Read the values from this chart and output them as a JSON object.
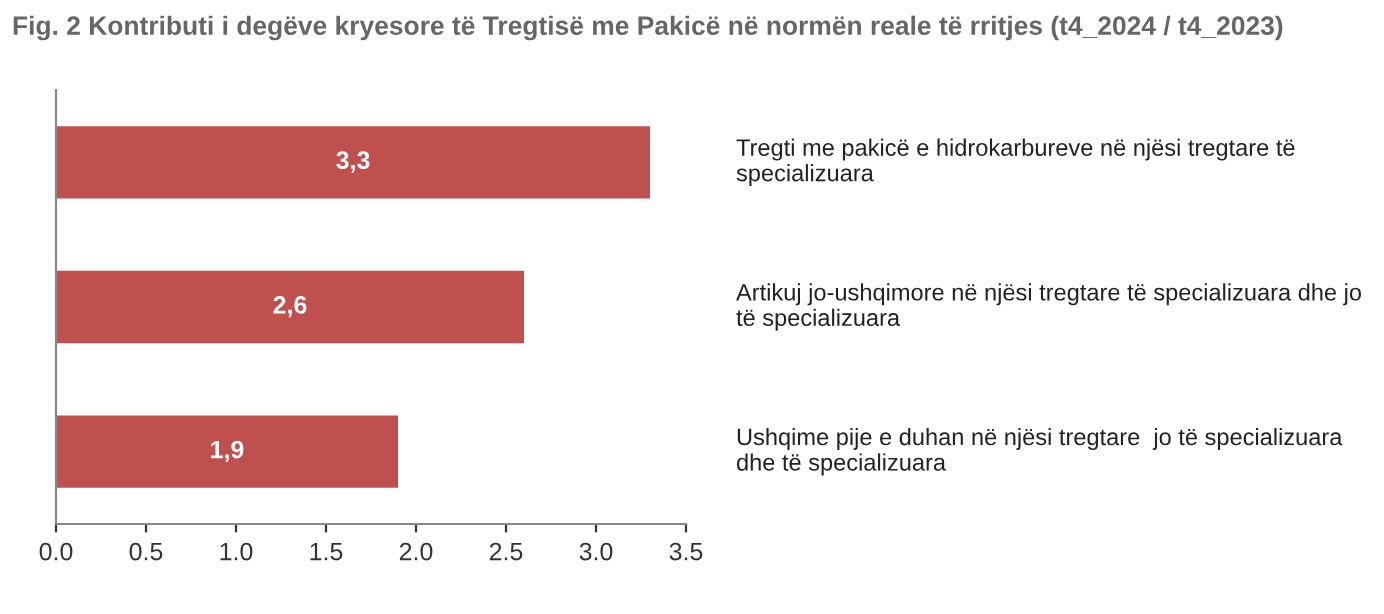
{
  "chart_data": {
    "type": "bar",
    "orientation": "horizontal",
    "title": "Fig. 2 Kontributi i degëve kryesore të Tregtisë me Pakicë në normën reale të rritjes (t4_2024 / t4_2023)",
    "categories": [
      "Tregti me pakicë e hidrokarbureve në njësi tregtare të specializuara",
      "Artikuj jo-ushqimore në njësi tregtare të specializuara dhe jo të specializuara",
      "Ushqime pije e duhan në njësi tregtare  jo të specializuara dhe të specializuara"
    ],
    "values": [
      3.3,
      2.6,
      1.9
    ],
    "value_labels": [
      "3,3",
      "2,6",
      "1,9"
    ],
    "color": "#c0504d",
    "xlim": [
      0,
      3.5
    ],
    "xticks": [
      {
        "value": 0,
        "label": "0.0"
      },
      {
        "value": 0.5,
        "label": "0.5"
      },
      {
        "value": 1,
        "label": "1.0"
      },
      {
        "value": 1.5,
        "label": "1.5"
      },
      {
        "value": 2,
        "label": "2.0"
      },
      {
        "value": 2.5,
        "label": "2.5"
      },
      {
        "value": 3,
        "label": "3.0"
      },
      {
        "value": 3.5,
        "label": "3.5"
      }
    ],
    "grid": false,
    "legend": false
  }
}
